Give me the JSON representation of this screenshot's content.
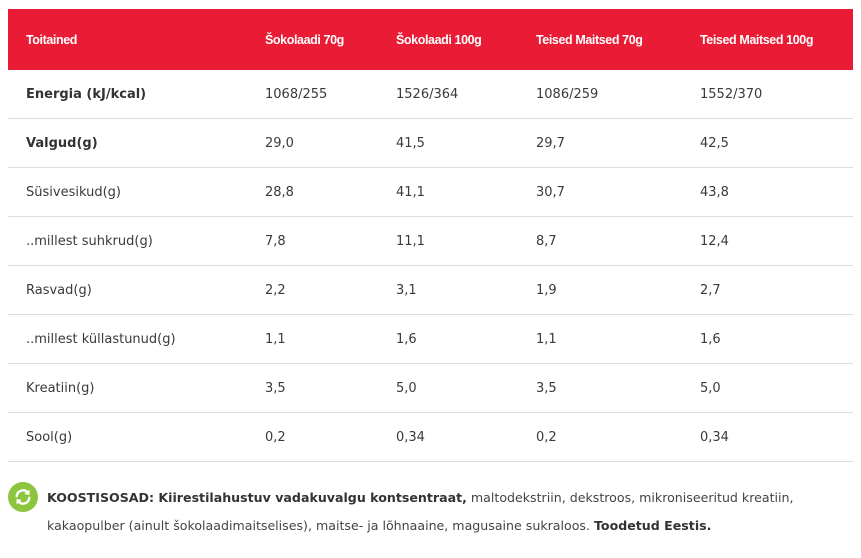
{
  "table": {
    "headers": [
      "Toitained",
      "Šokolaadi 70g",
      "Šokolaadi 100g",
      "Teised Maitsed 70g",
      "Teised Maitsed 100g"
    ],
    "rows": [
      {
        "label": "Energia (kJ/kcal)",
        "bold": true,
        "values": [
          "1068/255",
          "1526/364",
          "1086/259",
          "1552/370"
        ]
      },
      {
        "label": "Valgud(g)",
        "bold": true,
        "values": [
          "29,0",
          "41,5",
          "29,7",
          "42,5"
        ]
      },
      {
        "label": "Süsivesikud(g)",
        "bold": false,
        "values": [
          "28,8",
          "41,1",
          "30,7",
          "43,8"
        ]
      },
      {
        "label": "..millest suhkrud(g)",
        "bold": false,
        "values": [
          "7,8",
          "11,1",
          "8,7",
          "12,4"
        ]
      },
      {
        "label": "Rasvad(g)",
        "bold": false,
        "values": [
          "2,2",
          "3,1",
          "1,9",
          "2,7"
        ]
      },
      {
        "label": "..millest küllastunud(g)",
        "bold": false,
        "values": [
          "1,1",
          "1,6",
          "1,1",
          "1,6"
        ]
      },
      {
        "label": "Kreatiin(g)",
        "bold": false,
        "values": [
          "3,5",
          "5,0",
          "3,5",
          "5,0"
        ]
      },
      {
        "label": "Sool(g)",
        "bold": false,
        "values": [
          "0,2",
          "0,34",
          "0,2",
          "0,34"
        ]
      }
    ]
  },
  "ingredients": {
    "icon": "refresh-icon",
    "lead": "KOOSTISOSAD: Kiirestilahustuv vadakuvalgu kontsentraat,",
    "body": " maltodekstriin, dekstroos, mikroniseeritud kreatiin, kakaopulber (ainult šokolaadimaitselises), maitse- ja lõhnaaine, magusaine sukraloos. ",
    "tail": "Toodetud Eestis."
  },
  "colors": {
    "header_bg": "#ea1b34",
    "icon_bg": "#8cc63f",
    "row_border": "#dcdcdc"
  }
}
